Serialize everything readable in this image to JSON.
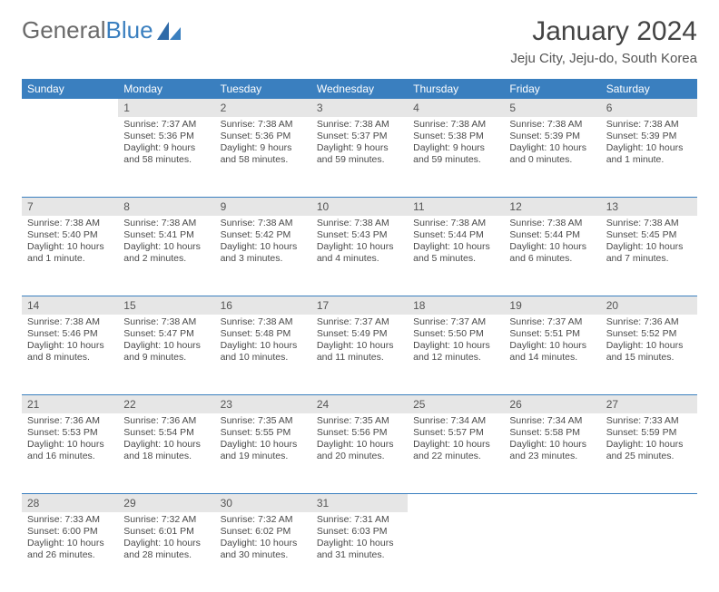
{
  "brand": {
    "part1": "General",
    "part2": "Blue"
  },
  "title": "January 2024",
  "location": "Jeju City, Jeju-do, South Korea",
  "colors": {
    "header_bg": "#3a7fbf",
    "daynum_bg": "#e6e6e6",
    "sep": "#3a7fbf",
    "text": "#4a4a4a"
  },
  "weekdays": [
    "Sunday",
    "Monday",
    "Tuesday",
    "Wednesday",
    "Thursday",
    "Friday",
    "Saturday"
  ],
  "weeks": [
    {
      "nums": [
        "",
        "1",
        "2",
        "3",
        "4",
        "5",
        "6"
      ],
      "cells": [
        [],
        [
          "Sunrise: 7:37 AM",
          "Sunset: 5:36 PM",
          "Daylight: 9 hours",
          "and 58 minutes."
        ],
        [
          "Sunrise: 7:38 AM",
          "Sunset: 5:36 PM",
          "Daylight: 9 hours",
          "and 58 minutes."
        ],
        [
          "Sunrise: 7:38 AM",
          "Sunset: 5:37 PM",
          "Daylight: 9 hours",
          "and 59 minutes."
        ],
        [
          "Sunrise: 7:38 AM",
          "Sunset: 5:38 PM",
          "Daylight: 9 hours",
          "and 59 minutes."
        ],
        [
          "Sunrise: 7:38 AM",
          "Sunset: 5:39 PM",
          "Daylight: 10 hours",
          "and 0 minutes."
        ],
        [
          "Sunrise: 7:38 AM",
          "Sunset: 5:39 PM",
          "Daylight: 10 hours",
          "and 1 minute."
        ]
      ]
    },
    {
      "nums": [
        "7",
        "8",
        "9",
        "10",
        "11",
        "12",
        "13"
      ],
      "cells": [
        [
          "Sunrise: 7:38 AM",
          "Sunset: 5:40 PM",
          "Daylight: 10 hours",
          "and 1 minute."
        ],
        [
          "Sunrise: 7:38 AM",
          "Sunset: 5:41 PM",
          "Daylight: 10 hours",
          "and 2 minutes."
        ],
        [
          "Sunrise: 7:38 AM",
          "Sunset: 5:42 PM",
          "Daylight: 10 hours",
          "and 3 minutes."
        ],
        [
          "Sunrise: 7:38 AM",
          "Sunset: 5:43 PM",
          "Daylight: 10 hours",
          "and 4 minutes."
        ],
        [
          "Sunrise: 7:38 AM",
          "Sunset: 5:44 PM",
          "Daylight: 10 hours",
          "and 5 minutes."
        ],
        [
          "Sunrise: 7:38 AM",
          "Sunset: 5:44 PM",
          "Daylight: 10 hours",
          "and 6 minutes."
        ],
        [
          "Sunrise: 7:38 AM",
          "Sunset: 5:45 PM",
          "Daylight: 10 hours",
          "and 7 minutes."
        ]
      ]
    },
    {
      "nums": [
        "14",
        "15",
        "16",
        "17",
        "18",
        "19",
        "20"
      ],
      "cells": [
        [
          "Sunrise: 7:38 AM",
          "Sunset: 5:46 PM",
          "Daylight: 10 hours",
          "and 8 minutes."
        ],
        [
          "Sunrise: 7:38 AM",
          "Sunset: 5:47 PM",
          "Daylight: 10 hours",
          "and 9 minutes."
        ],
        [
          "Sunrise: 7:38 AM",
          "Sunset: 5:48 PM",
          "Daylight: 10 hours",
          "and 10 minutes."
        ],
        [
          "Sunrise: 7:37 AM",
          "Sunset: 5:49 PM",
          "Daylight: 10 hours",
          "and 11 minutes."
        ],
        [
          "Sunrise: 7:37 AM",
          "Sunset: 5:50 PM",
          "Daylight: 10 hours",
          "and 12 minutes."
        ],
        [
          "Sunrise: 7:37 AM",
          "Sunset: 5:51 PM",
          "Daylight: 10 hours",
          "and 14 minutes."
        ],
        [
          "Sunrise: 7:36 AM",
          "Sunset: 5:52 PM",
          "Daylight: 10 hours",
          "and 15 minutes."
        ]
      ]
    },
    {
      "nums": [
        "21",
        "22",
        "23",
        "24",
        "25",
        "26",
        "27"
      ],
      "cells": [
        [
          "Sunrise: 7:36 AM",
          "Sunset: 5:53 PM",
          "Daylight: 10 hours",
          "and 16 minutes."
        ],
        [
          "Sunrise: 7:36 AM",
          "Sunset: 5:54 PM",
          "Daylight: 10 hours",
          "and 18 minutes."
        ],
        [
          "Sunrise: 7:35 AM",
          "Sunset: 5:55 PM",
          "Daylight: 10 hours",
          "and 19 minutes."
        ],
        [
          "Sunrise: 7:35 AM",
          "Sunset: 5:56 PM",
          "Daylight: 10 hours",
          "and 20 minutes."
        ],
        [
          "Sunrise: 7:34 AM",
          "Sunset: 5:57 PM",
          "Daylight: 10 hours",
          "and 22 minutes."
        ],
        [
          "Sunrise: 7:34 AM",
          "Sunset: 5:58 PM",
          "Daylight: 10 hours",
          "and 23 minutes."
        ],
        [
          "Sunrise: 7:33 AM",
          "Sunset: 5:59 PM",
          "Daylight: 10 hours",
          "and 25 minutes."
        ]
      ]
    },
    {
      "nums": [
        "28",
        "29",
        "30",
        "31",
        "",
        "",
        ""
      ],
      "cells": [
        [
          "Sunrise: 7:33 AM",
          "Sunset: 6:00 PM",
          "Daylight: 10 hours",
          "and 26 minutes."
        ],
        [
          "Sunrise: 7:32 AM",
          "Sunset: 6:01 PM",
          "Daylight: 10 hours",
          "and 28 minutes."
        ],
        [
          "Sunrise: 7:32 AM",
          "Sunset: 6:02 PM",
          "Daylight: 10 hours",
          "and 30 minutes."
        ],
        [
          "Sunrise: 7:31 AM",
          "Sunset: 6:03 PM",
          "Daylight: 10 hours",
          "and 31 minutes."
        ],
        [],
        [],
        []
      ]
    }
  ]
}
